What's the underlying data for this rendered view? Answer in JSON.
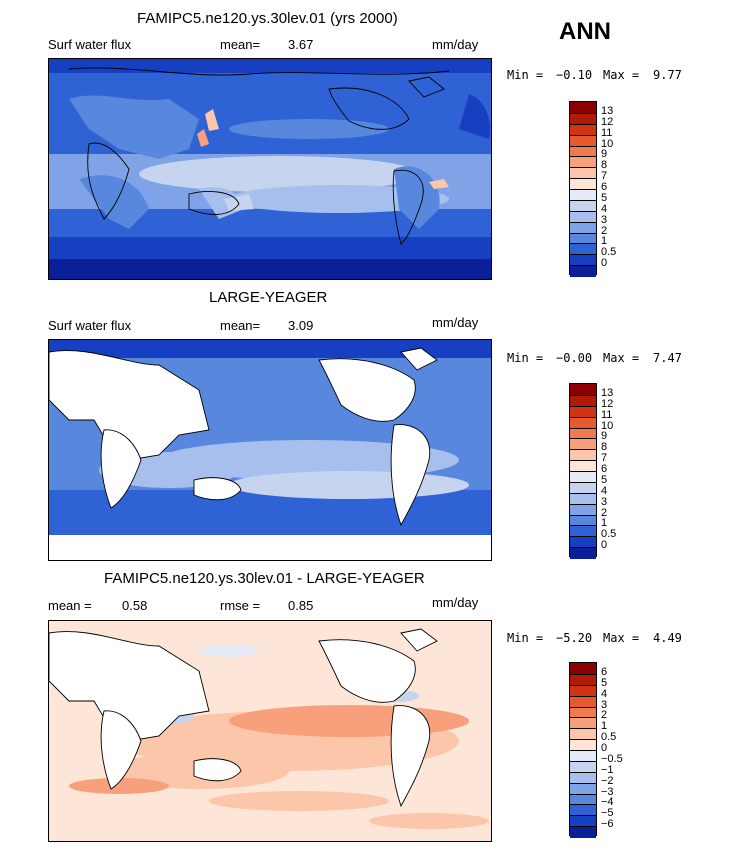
{
  "season": "ANN",
  "panels": [
    {
      "title": "FAMIPC5.ne120.ys.30lev.01 (yrs 2000)",
      "left_label": "Surf water flux",
      "stat1_label": "mean=",
      "stat1_value": "3.67",
      "stat2_label": "",
      "stat2_value": "",
      "units": "mm/day",
      "min_label": "Min =",
      "min_value": "−0.10",
      "max_label": "Max =",
      "max_value": "9.77",
      "levels": [
        "13",
        "12",
        "11",
        "10",
        "9",
        "8",
        "7",
        "6",
        "5",
        "4",
        "3",
        "2",
        "1",
        "0.5",
        "0"
      ],
      "colors": [
        "#8b0000",
        "#b01a06",
        "#d13414",
        "#e45a2c",
        "#f07a4e",
        "#f8a07b",
        "#fbc6a9",
        "#fde6d7",
        "#e6eaf6",
        "#c6d4f0",
        "#a7bfec",
        "#7fa3e6",
        "#5788de",
        "#2f62d4",
        "#173fc1",
        "#0b1f98"
      ]
    },
    {
      "title": "LARGE-YEAGER",
      "left_label": "Surf water flux",
      "stat1_label": "mean=",
      "stat1_value": "3.09",
      "stat2_label": "",
      "stat2_value": "",
      "units": "mm/day",
      "min_label": "Min =",
      "min_value": "−0.00",
      "max_label": "Max =",
      "max_value": "7.47",
      "levels": [
        "13",
        "12",
        "11",
        "10",
        "9",
        "8",
        "7",
        "6",
        "5",
        "4",
        "3",
        "2",
        "1",
        "0.5",
        "0"
      ],
      "colors": [
        "#8b0000",
        "#b01a06",
        "#d13414",
        "#e45a2c",
        "#f07a4e",
        "#f8a07b",
        "#fbc6a9",
        "#fde6d7",
        "#e6eaf6",
        "#c6d4f0",
        "#a7bfec",
        "#7fa3e6",
        "#5788de",
        "#2f62d4",
        "#173fc1",
        "#0b1f98"
      ]
    },
    {
      "title": "FAMIPC5.ne120.ys.30lev.01 - LARGE-YEAGER",
      "left_label": "mean =",
      "stat1_label": "",
      "stat1_value": "0.58",
      "stat2_label": "rmse =",
      "stat2_value": "0.85",
      "units": "mm/day",
      "min_label": "Min =",
      "min_value": "−5.20",
      "max_label": "Max =",
      "max_value": "4.49",
      "levels": [
        "6",
        "5",
        "4",
        "3",
        "2",
        "1",
        "0.5",
        "0",
        "−0.5",
        "−1",
        "−2",
        "−3",
        "−4",
        "−5",
        "−6"
      ],
      "colors": [
        "#8b0000",
        "#b01a06",
        "#d13414",
        "#e45a2c",
        "#f07a4e",
        "#f8a07b",
        "#fbc6a9",
        "#fde6d7",
        "#e6eaf6",
        "#c6d4f0",
        "#a7bfec",
        "#7fa3e6",
        "#5788de",
        "#2f62d4",
        "#173fc1",
        "#0b1f98"
      ]
    }
  ]
}
